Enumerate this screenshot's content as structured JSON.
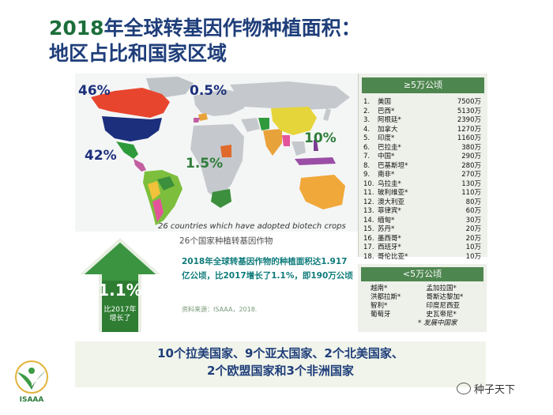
{
  "title": {
    "year": "2018",
    "line1_rest": "年全球转基因作物种植面积：",
    "line2": "地区占比和国家区域"
  },
  "map": {
    "pct_north_america": "46%",
    "pct_south_america": "42%",
    "pct_europe": "0.5%",
    "pct_africa": "1.5%",
    "pct_asia": "10%",
    "footnote": "26 countries which have adopted biotech crops"
  },
  "large_countries": {
    "header": "≥5万公顷",
    "rows": [
      {
        "num": "1.",
        "name": "美国",
        "value": "7500万"
      },
      {
        "num": "2.",
        "name": "巴西*",
        "value": "5130万"
      },
      {
        "num": "3.",
        "name": "阿根廷*",
        "value": "2390万"
      },
      {
        "num": "4.",
        "name": "加拿大",
        "value": "1270万"
      },
      {
        "num": "5.",
        "name": "印度*",
        "value": "1160万"
      },
      {
        "num": "6.",
        "name": "巴拉圭*",
        "value": "380万"
      },
      {
        "num": "7.",
        "name": "中国*",
        "value": "290万"
      },
      {
        "num": "8.",
        "name": "巴基斯坦*",
        "value": "280万"
      },
      {
        "num": "9.",
        "name": "南非*",
        "value": "270万"
      },
      {
        "num": "10.",
        "name": "乌拉圭*",
        "value": "130万"
      },
      {
        "num": "11.",
        "name": "玻利维亚*",
        "value": "110万"
      },
      {
        "num": "12.",
        "name": "澳大利亚",
        "value": "80万"
      },
      {
        "num": "13.",
        "name": "菲律宾*",
        "value": "60万"
      },
      {
        "num": "14.",
        "name": "缅甸*",
        "value": "30万"
      },
      {
        "num": "15.",
        "name": "苏丹*",
        "value": "20万"
      },
      {
        "num": "16.",
        "name": "墨西哥*",
        "value": "20万"
      },
      {
        "num": "17.",
        "name": "西班牙*",
        "value": "10万"
      },
      {
        "num": "18.",
        "name": "哥伦比亚*",
        "value": "10万"
      }
    ]
  },
  "small_countries": {
    "header": "<5万公顷",
    "items": [
      "越南*",
      "孟加拉国*",
      "洪都拉斯*",
      "哥斯达黎加*",
      "智利*",
      "印度尼西亚",
      "葡萄牙",
      "史瓦帝尼*"
    ],
    "note": "* 发展中国家"
  },
  "growth": {
    "value": "1.1%",
    "caption_line1": "比2017年",
    "caption_line2": "增长了"
  },
  "middle": {
    "heading": "26个国家种植转基因作物",
    "paragraph": "2018年全球转基因作物的种植面积达1.917亿公顷，比2017增长了1.1%，即190万公顷",
    "source": "资料来源：ISAAA，2018."
  },
  "bottom": {
    "line1": "10个拉美国家、9个亚太国家、2个北美国家、",
    "line2": "2个欧盟国家和3个非洲国家"
  },
  "logo_text": "ISAAA",
  "watermark": "种子天下",
  "colors": {
    "title_blue": "#1f3e7a",
    "green": "#4e8650",
    "arrow_green": "#2e7d32"
  }
}
